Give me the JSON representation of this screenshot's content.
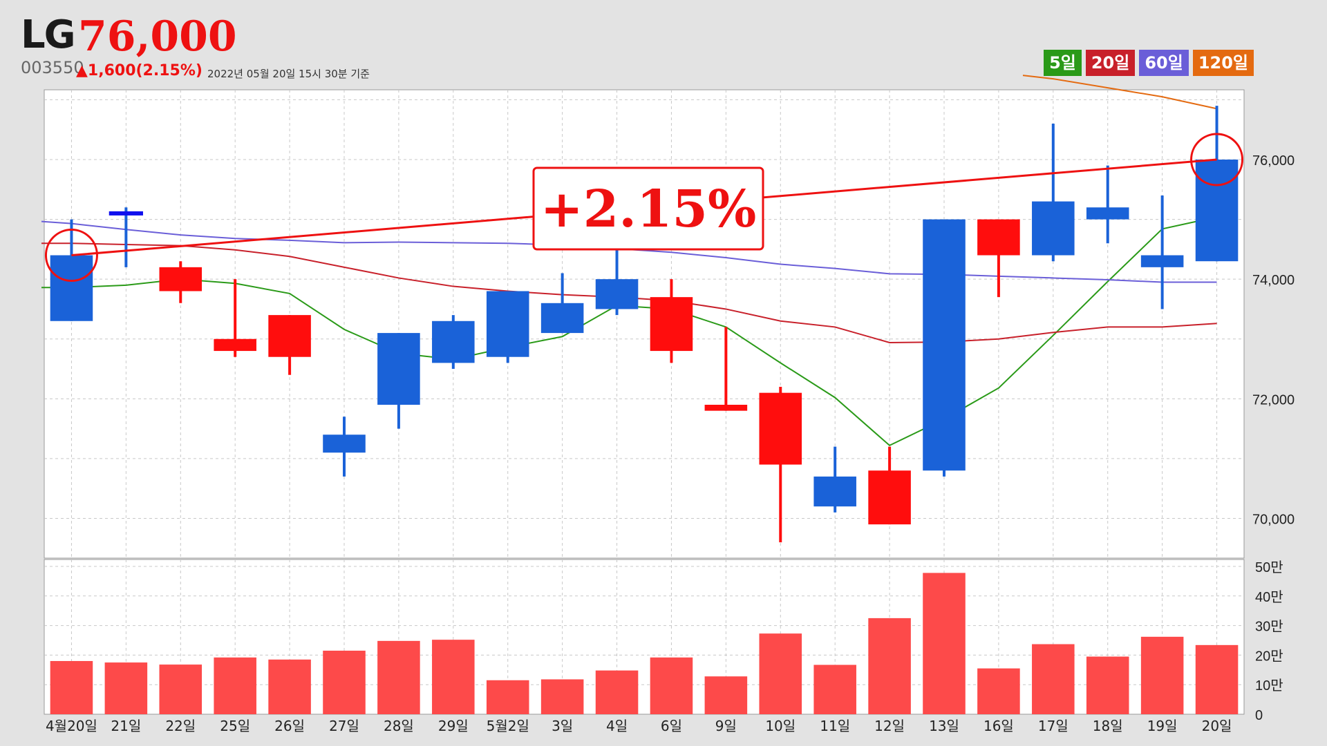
{
  "header": {
    "name": "LG",
    "price": "76,000",
    "code": "003550",
    "change": "▲1,600(2.15%)",
    "timestamp": "2022년 05월 20일 15시 30분 기준"
  },
  "legend": [
    {
      "label": "5일",
      "color": "#2a9a18"
    },
    {
      "label": "20일",
      "color": "#c8202a"
    },
    {
      "label": "60일",
      "color": "#6a5ed8"
    },
    {
      "label": "120일",
      "color": "#e46a10"
    }
  ],
  "annotation": "+2.15%",
  "chart_data": {
    "type": "candlestick",
    "categories": [
      "4월20일",
      "21일",
      "22일",
      "25일",
      "26일",
      "27일",
      "28일",
      "29일",
      "5월2일",
      "3일",
      "4일",
      "6일",
      "9일",
      "10일",
      "11일",
      "12일",
      "13일",
      "16일",
      "17일",
      "18일",
      "19일",
      "20일"
    ],
    "ohlc": [
      [
        74400,
        75000,
        73300,
        73300
      ],
      [
        75100,
        75200,
        74200,
        75100
      ],
      [
        73800,
        74300,
        73600,
        74200
      ],
      [
        72800,
        74000,
        72700,
        73000
      ],
      [
        72700,
        73400,
        72400,
        73400
      ],
      [
        71100,
        71700,
        70700,
        71400
      ],
      [
        71900,
        73100,
        71500,
        73100
      ],
      [
        72600,
        73400,
        72500,
        73300
      ],
      [
        72700,
        73800,
        72600,
        73800
      ],
      [
        73100,
        74100,
        73100,
        73600
      ],
      [
        73500,
        74600,
        73400,
        74000
      ],
      [
        73700,
        74000,
        72600,
        72800
      ],
      [
        71900,
        73200,
        71800,
        71800
      ],
      [
        72100,
        72200,
        69600,
        70900
      ],
      [
        70200,
        71200,
        70100,
        70700
      ],
      [
        70800,
        71200,
        69900,
        69900
      ],
      [
        70800,
        75000,
        70700,
        75000
      ],
      [
        75000,
        75000,
        73700,
        74400
      ],
      [
        74400,
        76600,
        74300,
        75300
      ],
      [
        75000,
        75900,
        74600,
        75200
      ],
      [
        74200,
        75400,
        73500,
        74400
      ],
      [
        74300,
        76900,
        74300,
        76000
      ]
    ],
    "candle_colors": [
      "blue",
      "blue",
      "red",
      "red",
      "red",
      "blue",
      "blue",
      "blue",
      "blue",
      "blue",
      "blue",
      "red",
      "red",
      "red",
      "blue",
      "red",
      "blue",
      "red",
      "blue",
      "blue",
      "blue",
      "blue"
    ],
    "ma": [
      {
        "name": "5일",
        "color": "#2a9a18",
        "values": [
          73860,
          73900,
          74000,
          73930,
          73760,
          73160,
          72760,
          72660,
          72860,
          73040,
          73560,
          73500,
          73200,
          72600,
          72020,
          71220,
          71660,
          72180,
          73060,
          73960,
          74840,
          75040
        ]
      },
      {
        "name": "20일",
        "color": "#c8202a",
        "values": [
          74600,
          74580,
          74560,
          74490,
          74380,
          74200,
          74020,
          73880,
          73800,
          73740,
          73700,
          73640,
          73500,
          73300,
          73200,
          72940,
          72950,
          73000,
          73110,
          73200,
          73200,
          73260
        ]
      },
      {
        "name": "60일",
        "color": "#6a5ed8",
        "values": [
          74930,
          74830,
          74740,
          74680,
          74650,
          74610,
          74620,
          74610,
          74600,
          74570,
          74510,
          74450,
          74360,
          74250,
          74180,
          74090,
          74080,
          74050,
          74020,
          73990,
          73950,
          73950
        ]
      },
      {
        "name": "120일",
        "color": "#e46a10",
        "values": [
          null,
          null,
          null,
          null,
          null,
          null,
          null,
          null,
          null,
          null,
          null,
          null,
          null,
          null,
          null,
          null,
          null,
          null,
          77350,
          77200,
          77050,
          76850
        ]
      },
      {
        "name": "trend",
        "color": "#ee1111",
        "values": [
          74400,
          null,
          null,
          null,
          null,
          null,
          null,
          null,
          null,
          null,
          null,
          null,
          null,
          null,
          null,
          null,
          null,
          null,
          null,
          null,
          null,
          76000
        ]
      }
    ],
    "volume": [
      180000,
      175000,
      168000,
      192000,
      185000,
      215000,
      248000,
      252000,
      115000,
      118000,
      148000,
      192000,
      128000,
      273000,
      167000,
      325000,
      478000,
      155000,
      237000,
      195000,
      262000,
      234000
    ],
    "price_ticks": [
      "70,000",
      "72,000",
      "74,000",
      "76,000"
    ],
    "price_tick_values": [
      70000,
      72000,
      74000,
      76000
    ],
    "volume_ticks": [
      "0",
      "10만",
      "20만",
      "30만",
      "40만",
      "50만"
    ],
    "volume_tick_values": [
      0,
      100000,
      200000,
      300000,
      400000,
      500000
    ],
    "price_range": [
      69400,
      77200
    ],
    "volume_range": [
      0,
      500000
    ],
    "grid": true
  }
}
